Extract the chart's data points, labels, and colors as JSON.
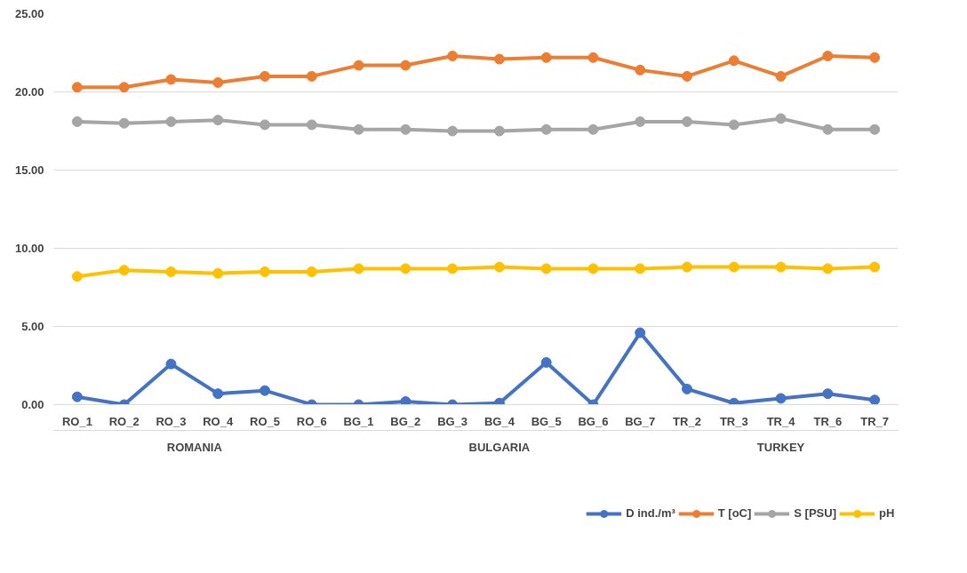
{
  "chart_data": {
    "type": "line",
    "categories": [
      "RO_1",
      "RO_2",
      "RO_3",
      "RO_4",
      "RO_5",
      "RO_6",
      "BG_1",
      "BG_2",
      "BG_3",
      "BG_4",
      "BG_5",
      "BG_6",
      "BG_7",
      "TR_2",
      "TR_3",
      "TR_4",
      "TR_6",
      "TR_7"
    ],
    "series": [
      {
        "name": "D ind./m³",
        "color": "#4472c4",
        "values": [
          0.5,
          0.0,
          2.6,
          0.7,
          0.9,
          0.0,
          0.0,
          0.2,
          0.0,
          0.1,
          2.7,
          0.0,
          4.6,
          1.0,
          0.1,
          0.4,
          0.7,
          0.3
        ]
      },
      {
        "name": "T [oC]",
        "color": "#ed7d31",
        "values": [
          20.3,
          20.3,
          20.8,
          20.6,
          21.0,
          21.0,
          21.7,
          21.7,
          22.3,
          22.1,
          22.2,
          22.2,
          21.4,
          21.0,
          22.0,
          21.0,
          22.3,
          22.2
        ]
      },
      {
        "name": "S [PSU]",
        "color": "#a5a5a5",
        "values": [
          18.1,
          18.0,
          18.1,
          18.2,
          17.9,
          17.9,
          17.6,
          17.6,
          17.5,
          17.5,
          17.6,
          17.6,
          18.1,
          18.1,
          17.9,
          18.3,
          17.6,
          17.6
        ]
      },
      {
        "name": "pH",
        "color": "#ffc000",
        "values": [
          8.2,
          8.6,
          8.5,
          8.4,
          8.5,
          8.5,
          8.7,
          8.7,
          8.7,
          8.8,
          8.7,
          8.7,
          8.7,
          8.8,
          8.8,
          8.8,
          8.7,
          8.8
        ]
      }
    ],
    "annotations": [
      "ROMANIA",
      "BULGARIA",
      "TURKEY"
    ],
    "ylim": [
      0,
      25
    ],
    "yticks": [
      {
        "value": 0,
        "label": "0.00"
      },
      {
        "value": 5,
        "label": "5.00"
      },
      {
        "value": 10,
        "label": "10.00"
      },
      {
        "value": 15,
        "label": "15.00"
      },
      {
        "value": 20,
        "label": "20.00"
      },
      {
        "value": 25,
        "label": "25.00"
      }
    ],
    "grid": "y",
    "legend": "bottom",
    "marker": "circle",
    "line_style": "solid"
  }
}
